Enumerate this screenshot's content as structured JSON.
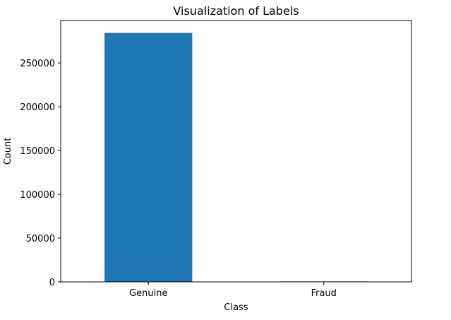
{
  "chart_data": {
    "type": "bar",
    "title": "Visualization of Labels",
    "xlabel": "Class",
    "ylabel": "Count",
    "categories": [
      "Genuine",
      "Fraud"
    ],
    "values": [
      284315,
      492
    ],
    "ylim": [
      0,
      298526
    ],
    "yticks": [
      0,
      50000,
      100000,
      150000,
      200000,
      250000
    ],
    "ytick_labels": [
      "0",
      "50000",
      "100000",
      "150000",
      "200000",
      "250000"
    ],
    "bar_color": "#1f77b4",
    "grid": false,
    "legend": "none"
  }
}
